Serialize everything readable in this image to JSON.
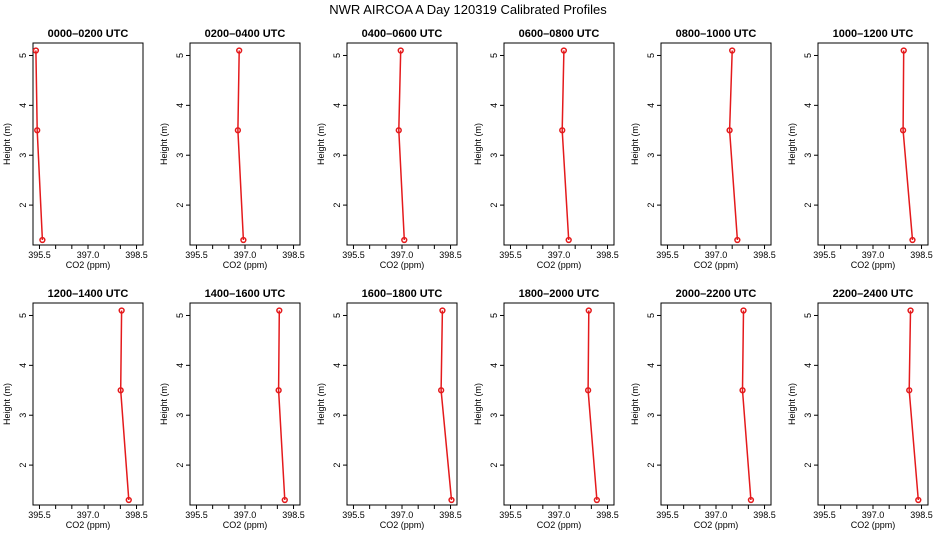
{
  "chart_data": {
    "type": "line",
    "title": "NWR AIRCOA A  Day 120319  Calibrated Profiles",
    "xlabel": "CO2 (ppm)",
    "ylabel": "Height (m)",
    "xlim": [
      395.3,
      398.7
    ],
    "ylim": [
      1.2,
      5.25
    ],
    "xticks": [
      "395.5",
      "397.0",
      "398.5"
    ],
    "yticks": [
      "2",
      "3",
      "4",
      "5"
    ],
    "xtick_values": [
      395.5,
      396.0,
      396.5,
      397.0,
      397.5,
      398.0,
      398.5
    ],
    "ytick_values": [
      2,
      3,
      4,
      5
    ],
    "heights": [
      5.1,
      3.5,
      1.3
    ],
    "color": "#e41a1c",
    "grid": false,
    "panels": [
      {
        "title": "0000–0200 UTC",
        "values": [
          395.39,
          395.43,
          395.59
        ]
      },
      {
        "title": "0200–0400 UTC",
        "values": [
          396.82,
          396.78,
          396.95
        ]
      },
      {
        "title": "0400–0600 UTC",
        "values": [
          396.96,
          396.9,
          397.07
        ]
      },
      {
        "title": "0600–0800 UTC",
        "values": [
          397.15,
          397.1,
          397.3
        ]
      },
      {
        "title": "0800–1000 UTC",
        "values": [
          397.5,
          397.42,
          397.66
        ]
      },
      {
        "title": "1000–1200 UTC",
        "values": [
          397.95,
          397.93,
          398.22
        ]
      },
      {
        "title": "1200–1400 UTC",
        "values": [
          398.04,
          398.01,
          398.26
        ]
      },
      {
        "title": "1400–1600 UTC",
        "values": [
          398.06,
          398.04,
          398.23
        ]
      },
      {
        "title": "1600–1800 UTC",
        "values": [
          398.25,
          398.21,
          398.53
        ]
      },
      {
        "title": "1800–2000 UTC",
        "values": [
          397.92,
          397.9,
          398.17
        ]
      },
      {
        "title": "2000–2200 UTC",
        "values": [
          397.85,
          397.82,
          398.08
        ]
      },
      {
        "title": "2200–2400 UTC",
        "values": [
          398.16,
          398.12,
          398.4
        ]
      }
    ]
  }
}
